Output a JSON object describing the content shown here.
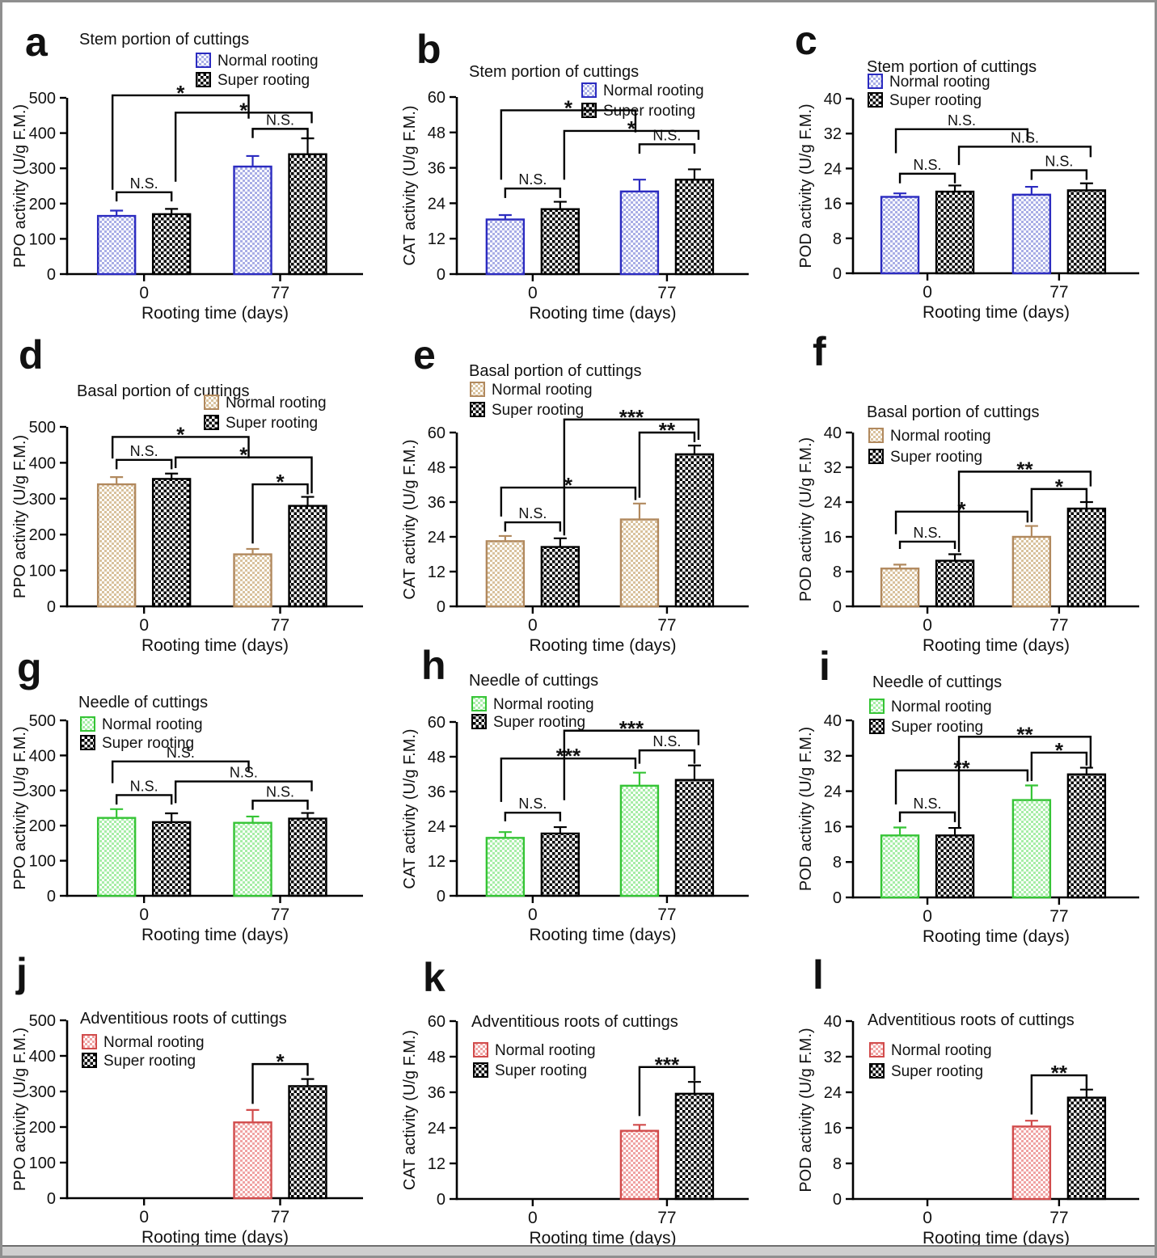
{
  "frame": {
    "border_color": "#8f8f8f",
    "bottom_strip_color": "#cfcfcf"
  },
  "legend": {
    "normal": "Normal rooting",
    "super": "Super rooting"
  },
  "shared": {
    "xlabel": "Rooting time (days)",
    "categories": [
      "0",
      "77"
    ]
  },
  "chart_data": [
    {
      "type": "bar",
      "letter": "a",
      "title": "Stem portion of cuttings",
      "ylabel": "PPO activity (U/g F.M.)",
      "ylim": [
        0,
        500
      ],
      "yticks": [
        0,
        100,
        200,
        300,
        400,
        500
      ],
      "categories": [
        "0",
        "77"
      ],
      "series": [
        {
          "name": "Normal rooting",
          "values": [
            165,
            305
          ],
          "errors": [
            15,
            30
          ]
        },
        {
          "name": "Super rooting",
          "values": [
            170,
            340
          ],
          "errors": [
            15,
            45
          ]
        }
      ],
      "colors": {
        "normal_border": "#2b2bc0",
        "normal_fill": "#a9aee6",
        "super_border": "#000000",
        "super_fill": "#000000"
      },
      "significance": [
        {
          "bars": [
            0,
            1
          ],
          "label": "N.S."
        },
        {
          "bars": [
            2,
            3
          ],
          "label": "N.S."
        },
        {
          "bars": [
            0,
            2
          ],
          "label": "*"
        },
        {
          "bars": [
            1,
            3
          ],
          "label": "*"
        }
      ]
    },
    {
      "type": "bar",
      "letter": "b",
      "title": "Stem portion of cuttings",
      "ylabel": "CAT activity (U/g F.M.)",
      "ylim": [
        0,
        60
      ],
      "yticks": [
        0,
        12,
        24,
        36,
        48,
        60
      ],
      "categories": [
        "0",
        "77"
      ],
      "series": [
        {
          "name": "Normal rooting",
          "values": [
            18.5,
            28
          ],
          "errors": [
            1.5,
            4
          ]
        },
        {
          "name": "Super rooting",
          "values": [
            22,
            32
          ],
          "errors": [
            2.5,
            3.5
          ]
        }
      ],
      "colors": {
        "normal_border": "#2b2bc0",
        "normal_fill": "#a9aee6",
        "super_border": "#000000",
        "super_fill": "#000000"
      },
      "significance": [
        {
          "bars": [
            0,
            1
          ],
          "label": "N.S."
        },
        {
          "bars": [
            2,
            3
          ],
          "label": "N.S."
        },
        {
          "bars": [
            0,
            2
          ],
          "label": "*"
        },
        {
          "bars": [
            1,
            3
          ],
          "label": "*"
        }
      ]
    },
    {
      "type": "bar",
      "letter": "c",
      "title": "Stem portion of cuttings",
      "ylabel": "POD activity (U/g F.M.)",
      "ylim": [
        0,
        40
      ],
      "yticks": [
        0,
        8,
        16,
        24,
        32,
        40
      ],
      "categories": [
        "0",
        "77"
      ],
      "series": [
        {
          "name": "Normal rooting",
          "values": [
            17.5,
            18
          ],
          "errors": [
            0.8,
            1.8
          ]
        },
        {
          "name": "Super rooting",
          "values": [
            18.7,
            19
          ],
          "errors": [
            1.4,
            1.6
          ]
        }
      ],
      "colors": {
        "normal_border": "#2b2bc0",
        "normal_fill": "#a9aee6",
        "super_border": "#000000",
        "super_fill": "#000000"
      },
      "significance": [
        {
          "bars": [
            0,
            1
          ],
          "label": "N.S."
        },
        {
          "bars": [
            2,
            3
          ],
          "label": "N.S."
        },
        {
          "bars": [
            0,
            2
          ],
          "label": "N.S."
        },
        {
          "bars": [
            1,
            3
          ],
          "label": "N.S."
        }
      ]
    },
    {
      "type": "bar",
      "letter": "d",
      "title": "Basal portion of cuttings",
      "ylabel": "PPO activity (U/g F.M.)",
      "ylim": [
        0,
        500
      ],
      "yticks": [
        0,
        100,
        200,
        300,
        400,
        500
      ],
      "categories": [
        "0",
        "77"
      ],
      "series": [
        {
          "name": "Normal rooting",
          "values": [
            340,
            145
          ],
          "errors": [
            20,
            15
          ]
        },
        {
          "name": "Super rooting",
          "values": [
            355,
            280
          ],
          "errors": [
            15,
            25
          ]
        }
      ],
      "colors": {
        "normal_border": "#b1895e",
        "normal_fill": "#d9c29d",
        "super_border": "#000000",
        "super_fill": "#000000"
      },
      "significance": [
        {
          "bars": [
            0,
            1
          ],
          "label": "N.S."
        },
        {
          "bars": [
            0,
            2
          ],
          "label": "*"
        },
        {
          "bars": [
            1,
            3
          ],
          "label": "*"
        },
        {
          "bars": [
            2,
            3
          ],
          "label": "*"
        }
      ]
    },
    {
      "type": "bar",
      "letter": "e",
      "title": "Basal portion of cuttings",
      "ylabel": "CAT activity (U/g F.M.)",
      "ylim": [
        0,
        60
      ],
      "yticks": [
        0,
        12,
        24,
        36,
        48,
        60
      ],
      "categories": [
        "0",
        "77"
      ],
      "series": [
        {
          "name": "Normal rooting",
          "values": [
            22.5,
            30
          ],
          "errors": [
            1.8,
            5.5
          ]
        },
        {
          "name": "Super rooting",
          "values": [
            20.5,
            52.5
          ],
          "errors": [
            3,
            3
          ]
        }
      ],
      "colors": {
        "normal_border": "#b1895e",
        "normal_fill": "#d9c29d",
        "super_border": "#000000",
        "super_fill": "#000000"
      },
      "significance": [
        {
          "bars": [
            0,
            1
          ],
          "label": "N.S."
        },
        {
          "bars": [
            0,
            2
          ],
          "label": "*"
        },
        {
          "bars": [
            1,
            3
          ],
          "label": "***"
        },
        {
          "bars": [
            2,
            3
          ],
          "label": "**"
        }
      ]
    },
    {
      "type": "bar",
      "letter": "f",
      "title": "Basal portion of cuttings",
      "ylabel": "POD activity (U/g F.M.)",
      "ylim": [
        0,
        40
      ],
      "yticks": [
        0,
        8,
        16,
        24,
        32,
        40
      ],
      "categories": [
        "0",
        "77"
      ],
      "series": [
        {
          "name": "Normal rooting",
          "values": [
            8.7,
            16
          ],
          "errors": [
            0.9,
            2.5
          ]
        },
        {
          "name": "Super rooting",
          "values": [
            10.5,
            22.5
          ],
          "errors": [
            1.5,
            1.5
          ]
        }
      ],
      "colors": {
        "normal_border": "#b1895e",
        "normal_fill": "#d9c29d",
        "super_border": "#000000",
        "super_fill": "#000000"
      },
      "significance": [
        {
          "bars": [
            0,
            1
          ],
          "label": "N.S."
        },
        {
          "bars": [
            0,
            2
          ],
          "label": "*"
        },
        {
          "bars": [
            1,
            3
          ],
          "label": "**"
        },
        {
          "bars": [
            2,
            3
          ],
          "label": "*"
        }
      ]
    },
    {
      "type": "bar",
      "letter": "g",
      "title": "Needle of cuttings",
      "ylabel": "PPO activity (U/g F.M.)",
      "ylim": [
        0,
        500
      ],
      "yticks": [
        0,
        100,
        200,
        300,
        400,
        500
      ],
      "categories": [
        "0",
        "77"
      ],
      "series": [
        {
          "name": "Normal rooting",
          "values": [
            222,
            208
          ],
          "errors": [
            25,
            18
          ]
        },
        {
          "name": "Super rooting",
          "values": [
            210,
            220
          ],
          "errors": [
            25,
            16
          ]
        }
      ],
      "colors": {
        "normal_border": "#35c435",
        "normal_fill": "#a7eda7",
        "super_border": "#000000",
        "super_fill": "#000000"
      },
      "significance": [
        {
          "bars": [
            0,
            1
          ],
          "label": "N.S."
        },
        {
          "bars": [
            0,
            2
          ],
          "label": "N.S."
        },
        {
          "bars": [
            1,
            3
          ],
          "label": "N.S."
        },
        {
          "bars": [
            2,
            3
          ],
          "label": "N.S."
        }
      ]
    },
    {
      "type": "bar",
      "letter": "h",
      "title": "Needle of cuttings",
      "ylabel": "CAT activity (U/g F.M.)",
      "ylim": [
        0,
        60
      ],
      "yticks": [
        0,
        12,
        24,
        36,
        48,
        60
      ],
      "categories": [
        "0",
        "77"
      ],
      "series": [
        {
          "name": "Normal rooting",
          "values": [
            20,
            38
          ],
          "errors": [
            2,
            4.5
          ]
        },
        {
          "name": "Super rooting",
          "values": [
            21.5,
            40
          ],
          "errors": [
            2.2,
            5
          ]
        }
      ],
      "colors": {
        "normal_border": "#35c435",
        "normal_fill": "#a7eda7",
        "super_border": "#000000",
        "super_fill": "#000000"
      },
      "significance": [
        {
          "bars": [
            0,
            1
          ],
          "label": "N.S."
        },
        {
          "bars": [
            0,
            2
          ],
          "label": "***"
        },
        {
          "bars": [
            1,
            3
          ],
          "label": "***"
        },
        {
          "bars": [
            2,
            3
          ],
          "label": "N.S."
        }
      ]
    },
    {
      "type": "bar",
      "letter": "i",
      "title": "Needle of cuttings",
      "ylabel": "POD activity (U/g F.M.)",
      "ylim": [
        0,
        40
      ],
      "yticks": [
        0,
        8,
        16,
        24,
        32,
        40
      ],
      "categories": [
        "0",
        "77"
      ],
      "series": [
        {
          "name": "Normal rooting",
          "values": [
            14,
            22
          ],
          "errors": [
            1.8,
            3.3
          ]
        },
        {
          "name": "Super rooting",
          "values": [
            14,
            27.8
          ],
          "errors": [
            1.7,
            1.5
          ]
        }
      ],
      "colors": {
        "normal_border": "#35c435",
        "normal_fill": "#a7eda7",
        "super_border": "#000000",
        "super_fill": "#000000"
      },
      "significance": [
        {
          "bars": [
            0,
            1
          ],
          "label": "N.S."
        },
        {
          "bars": [
            0,
            2
          ],
          "label": "**"
        },
        {
          "bars": [
            1,
            3
          ],
          "label": "**"
        },
        {
          "bars": [
            2,
            3
          ],
          "label": "*"
        }
      ]
    },
    {
      "type": "bar",
      "letter": "j",
      "title": "Adventitious roots of cuttings",
      "ylabel": "PPO activity (U/g F.M.)",
      "ylim": [
        0,
        500
      ],
      "yticks": [
        0,
        100,
        200,
        300,
        400,
        500
      ],
      "categories": [
        "0",
        "77"
      ],
      "series": [
        {
          "name": "Normal rooting",
          "values": [
            null,
            213
          ],
          "errors": [
            null,
            35
          ]
        },
        {
          "name": "Super rooting",
          "values": [
            null,
            315
          ],
          "errors": [
            null,
            20
          ]
        }
      ],
      "colors": {
        "normal_border": "#d14b4b",
        "normal_fill": "#f0a3a3",
        "super_border": "#000000",
        "super_fill": "#000000"
      },
      "significance": [
        {
          "bars": [
            2,
            3
          ],
          "label": "*"
        }
      ]
    },
    {
      "type": "bar",
      "letter": "k",
      "title": "Adventitious roots of cuttings",
      "ylabel": "CAT activity (U/g F.M.)",
      "ylim": [
        0,
        60
      ],
      "yticks": [
        0,
        12,
        24,
        36,
        48,
        60
      ],
      "categories": [
        "0",
        "77"
      ],
      "series": [
        {
          "name": "Normal rooting",
          "values": [
            null,
            23
          ],
          "errors": [
            null,
            2
          ]
        },
        {
          "name": "Super rooting",
          "values": [
            null,
            35.5
          ],
          "errors": [
            null,
            4
          ]
        }
      ],
      "colors": {
        "normal_border": "#d14b4b",
        "normal_fill": "#f0a3a3",
        "super_border": "#000000",
        "super_fill": "#000000"
      },
      "significance": [
        {
          "bars": [
            2,
            3
          ],
          "label": "***"
        }
      ]
    },
    {
      "type": "bar",
      "letter": "l",
      "title": "Adventitious roots of cuttings",
      "ylabel": "POD activity (U/g F.M.)",
      "ylim": [
        0,
        40
      ],
      "yticks": [
        0,
        8,
        16,
        24,
        32,
        40
      ],
      "categories": [
        "0",
        "77"
      ],
      "series": [
        {
          "name": "Normal rooting",
          "values": [
            null,
            16.3
          ],
          "errors": [
            null,
            1.3
          ]
        },
        {
          "name": "Super rooting",
          "values": [
            null,
            22.8
          ],
          "errors": [
            null,
            1.8
          ]
        }
      ],
      "colors": {
        "normal_border": "#d14b4b",
        "normal_fill": "#f0a3a3",
        "super_border": "#000000",
        "super_fill": "#000000"
      },
      "significance": [
        {
          "bars": [
            2,
            3
          ],
          "label": "**"
        }
      ]
    }
  ]
}
